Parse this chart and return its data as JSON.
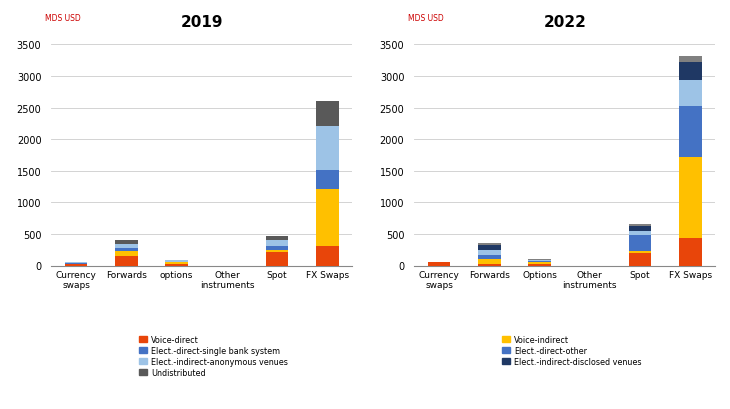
{
  "categories": [
    "Currency\nswaps",
    "Forwards",
    "options",
    "Other\ninstruments",
    "Spot",
    "FX Swaps"
  ],
  "categories2": [
    "Currency\nswaps",
    "Forwards",
    "Options",
    "Other\ninstruments",
    "Spot",
    "FX Swaps"
  ],
  "title1": "2019",
  "title2": "2022",
  "ylabel": "MDS USD",
  "ylim": [
    0,
    3700
  ],
  "yticks": [
    0,
    500,
    1000,
    1500,
    2000,
    2500,
    3000,
    3500
  ],
  "data2019_keys": [
    "Voice-direct",
    "Voice-indirect",
    "Elect.-direct-single bank system",
    "Elect.-indirect-anonymous venues",
    "Undistributed"
  ],
  "data2019": {
    "Voice-direct": [
      20,
      150,
      30,
      0,
      220,
      310
    ],
    "Voice-indirect": [
      10,
      80,
      20,
      0,
      30,
      900
    ],
    "Elect.-direct-single bank system": [
      10,
      50,
      10,
      0,
      60,
      300
    ],
    "Elect.-indirect-anonymous venues": [
      10,
      60,
      20,
      0,
      100,
      700
    ],
    "Undistributed": [
      5,
      60,
      10,
      0,
      60,
      400
    ]
  },
  "data2022_keys": [
    "Voice-direct",
    "Voice-indirect",
    "Elect.-direct-other",
    "Elect.-indirect-anonymous venues",
    "Elect.-indirect-disclosed venues",
    "Undistributed"
  ],
  "data2022": {
    "Voice-direct": [
      60,
      20,
      30,
      0,
      200,
      430
    ],
    "Voice-indirect": [
      0,
      80,
      30,
      0,
      30,
      1280
    ],
    "Elect.-direct-other": [
      0,
      60,
      10,
      0,
      250,
      820
    ],
    "Elect.-indirect-anonymous venues": [
      0,
      80,
      10,
      0,
      70,
      400
    ],
    "Elect.-indirect-disclosed venues": [
      0,
      80,
      10,
      0,
      80,
      290
    ],
    "Undistributed": [
      0,
      40,
      5,
      0,
      30,
      100
    ]
  },
  "colors2019": {
    "Voice-direct": "#E8450A",
    "Voice-indirect": "#FFC000",
    "Elect.-direct-single bank system": "#4472C4",
    "Elect.-indirect-anonymous venues": "#9DC3E6",
    "Undistributed": "#595959"
  },
  "colors2022": {
    "Voice-direct": "#E8450A",
    "Voice-indirect": "#FFC000",
    "Elect.-direct-other": "#4472C4",
    "Elect.-indirect-anonymous venues": "#9DC3E6",
    "Elect.-indirect-disclosed venues": "#1F3864",
    "Undistributed": "#808080"
  },
  "legend1": [
    {
      "label": "Voice-direct",
      "color": "#E8450A"
    },
    {
      "label": "Elect.-direct-single bank system",
      "color": "#4472C4"
    },
    {
      "label": "Elect.-indirect-anonymous venues",
      "color": "#9DC3E6"
    },
    {
      "label": "Undistributed",
      "color": "#595959"
    }
  ],
  "legend2": [
    {
      "label": "Voice-indirect",
      "color": "#FFC000"
    },
    {
      "label": "Elect.-direct-other",
      "color": "#4472C4"
    },
    {
      "label": "Elect.-indirect-disclosed venues",
      "color": "#1F3864"
    }
  ],
  "bar_width": 0.45
}
